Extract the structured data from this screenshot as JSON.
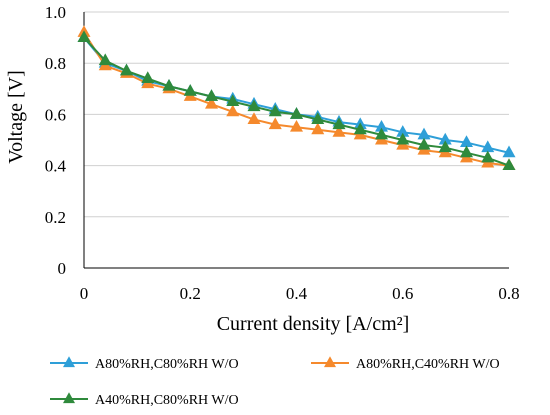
{
  "chart_data": {
    "type": "line",
    "xlabel": "Current density [A/cm²]",
    "ylabel": "Voltage [V]",
    "xlim": [
      0,
      0.8
    ],
    "ylim": [
      0,
      1.0
    ],
    "xticks": [
      "0",
      "0.2",
      "0.4",
      "0.6",
      "0.8"
    ],
    "yticks": [
      "0",
      "0.2",
      "0.4",
      "0.6",
      "0.8",
      "1.0"
    ],
    "grid": "horizontal",
    "legend_position": "bottom",
    "x": [
      0,
      0.04,
      0.08,
      0.12,
      0.16,
      0.2,
      0.24,
      0.28,
      0.32,
      0.36,
      0.4,
      0.44,
      0.48,
      0.52,
      0.56,
      0.6,
      0.64,
      0.68,
      0.72,
      0.76,
      0.8
    ],
    "series": [
      {
        "name": "A80%RH,C80%RH W/O",
        "color": "#2e9fd8",
        "marker": "triangle",
        "values": [
          0.9,
          0.8,
          0.77,
          0.73,
          0.71,
          0.69,
          0.67,
          0.66,
          0.64,
          0.62,
          0.6,
          0.59,
          0.57,
          0.56,
          0.55,
          0.53,
          0.52,
          0.5,
          0.49,
          0.47,
          0.45
        ]
      },
      {
        "name": "A80%RH,C40%RH W/O",
        "color": "#f5892c",
        "marker": "triangle",
        "values": [
          0.92,
          0.79,
          0.76,
          0.72,
          0.7,
          0.67,
          0.64,
          0.61,
          0.58,
          0.56,
          0.55,
          0.54,
          0.53,
          0.52,
          0.5,
          0.48,
          0.46,
          0.45,
          0.43,
          0.41,
          0.4
        ]
      },
      {
        "name": "A40%RH,C80%RH W/O",
        "color": "#2f8a3c",
        "marker": "triangle",
        "values": [
          0.9,
          0.81,
          0.77,
          0.74,
          0.71,
          0.69,
          0.67,
          0.65,
          0.63,
          0.61,
          0.6,
          0.58,
          0.56,
          0.54,
          0.52,
          0.5,
          0.48,
          0.47,
          0.45,
          0.43,
          0.4
        ]
      }
    ]
  }
}
